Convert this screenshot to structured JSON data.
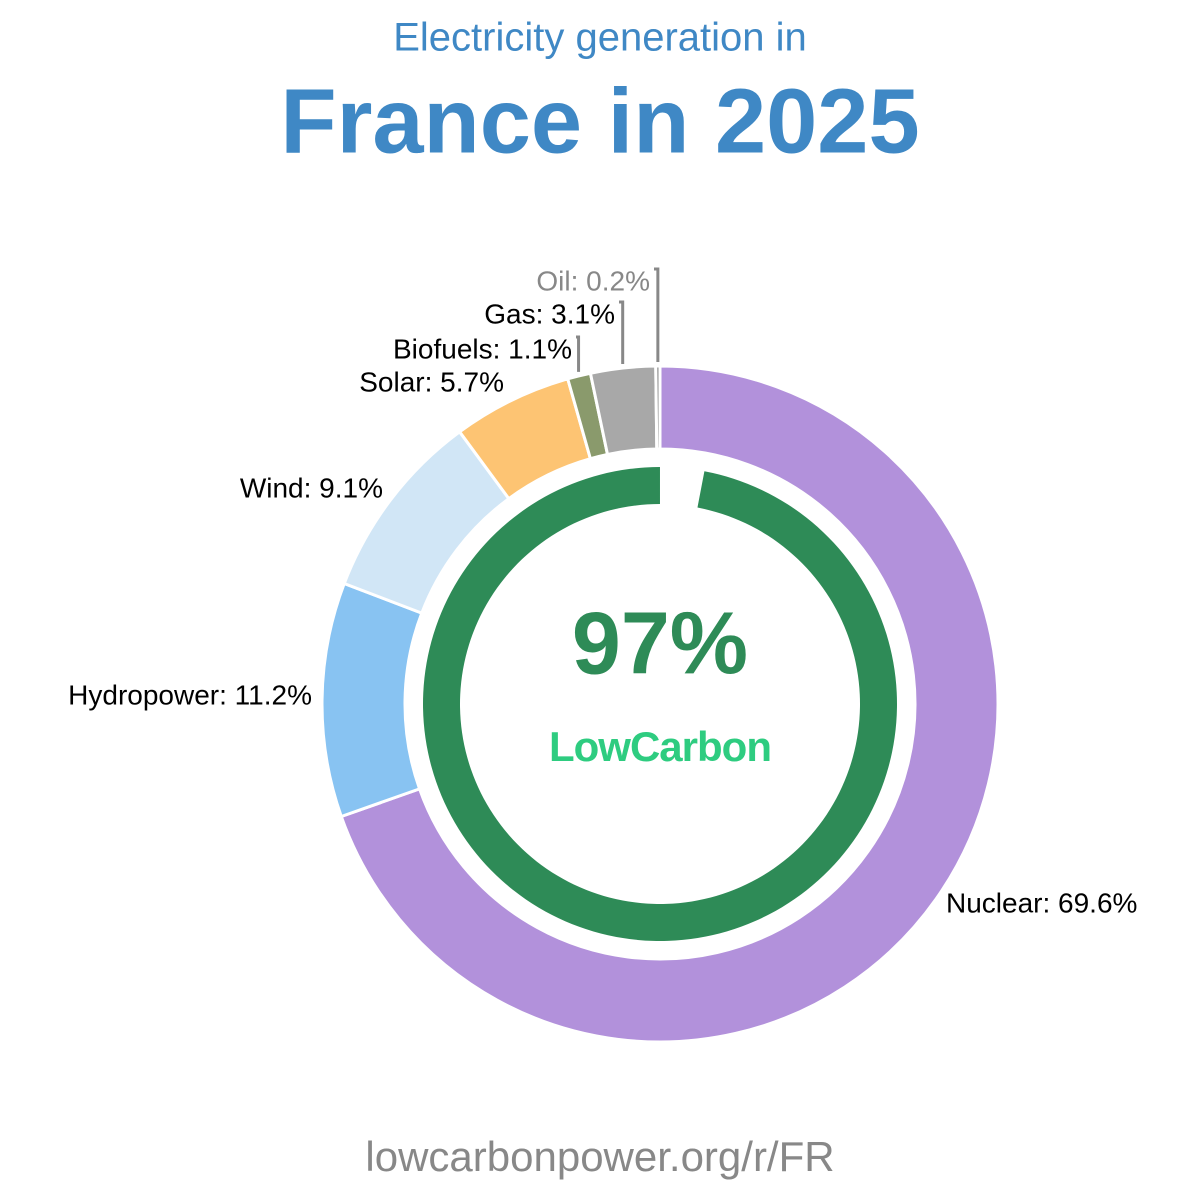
{
  "chart_data": {
    "type": "pie",
    "subtitle": "Electricity generation in",
    "title": "France in 2025",
    "labels": [
      "Nuclear: 69.6%",
      "Hydropower: 11.2%",
      "Wind: 9.1%",
      "Solar: 5.7%",
      "Biofuels: 1.1%",
      "Gas: 3.1%",
      "Oil: 0.2%"
    ],
    "values": [
      69.6,
      11.2,
      9.1,
      5.7,
      1.1,
      3.1,
      0.2
    ],
    "colors": [
      "#b291db",
      "#88c3f2",
      "#d1e6f6",
      "#fdc473",
      "#8a9a6c",
      "#a8a8a8",
      "#8c8c8c"
    ],
    "center": {
      "value": 97,
      "value_label": "97%",
      "label": "LowCarbon",
      "color": "#2e8b57",
      "label_color": "#2ecc80"
    },
    "source": "lowcarbonpower.org/r/FR"
  }
}
